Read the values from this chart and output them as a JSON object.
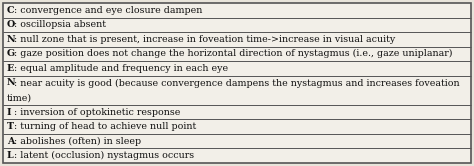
{
  "rows": [
    {
      "letter": "C",
      "text": ": convergence and eye closure dampen"
    },
    {
      "letter": "O",
      "text": ": oscillopsia absent"
    },
    {
      "letter": "N",
      "text": ": null zone that is present, increase in foveation time->increase in visual acuity"
    },
    {
      "letter": "G",
      "text": ": gaze position does not change the horizontal direction of nystagmus (i.e., gaze uniplanar)"
    },
    {
      "letter": "E",
      "text": ": equal amplitude and frequency in each eye"
    },
    {
      "letter": "N",
      "text": ": near acuity is good (because convergence dampens the nystagmus and increases foveation\ntime)"
    },
    {
      "letter": "I",
      "text": ": inversion of optokinetic response"
    },
    {
      "letter": "T",
      "text": ": turning of head to achieve null point"
    },
    {
      "letter": "A",
      "text": ": abolishes (often) in sleep"
    },
    {
      "letter": "L",
      "text": ": latent (occlusion) nystagmus occurs"
    }
  ],
  "background_color": "#e8e4da",
  "cell_color": "#f2efe8",
  "border_color": "#555555",
  "text_color": "#111111",
  "font_size": 6.8,
  "fig_width": 4.74,
  "fig_height": 1.66,
  "dpi": 100
}
